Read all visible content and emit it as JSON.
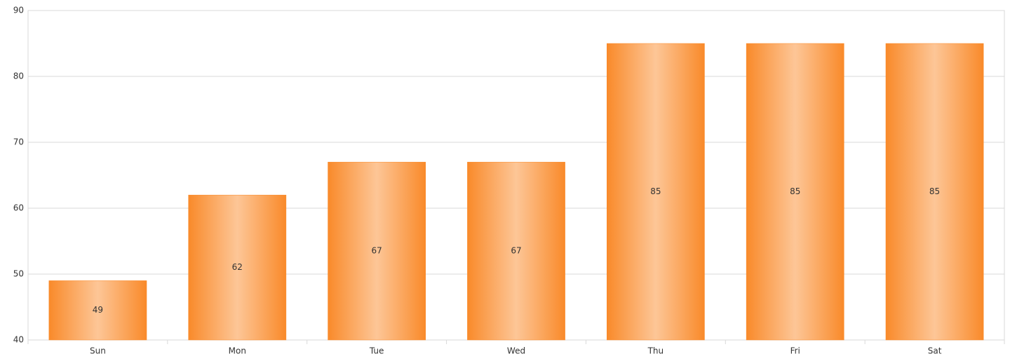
{
  "chart_data": {
    "type": "bar",
    "categories": [
      "Sun",
      "Mon",
      "Tue",
      "Wed",
      "Thu",
      "Fri",
      "Sat"
    ],
    "values": [
      49,
      62,
      67,
      67,
      85,
      85,
      85
    ],
    "color": "#f98a2a",
    "ylim": [
      40,
      90
    ],
    "yticks": [
      40,
      50,
      60,
      70,
      80,
      90
    ],
    "grid": true
  }
}
